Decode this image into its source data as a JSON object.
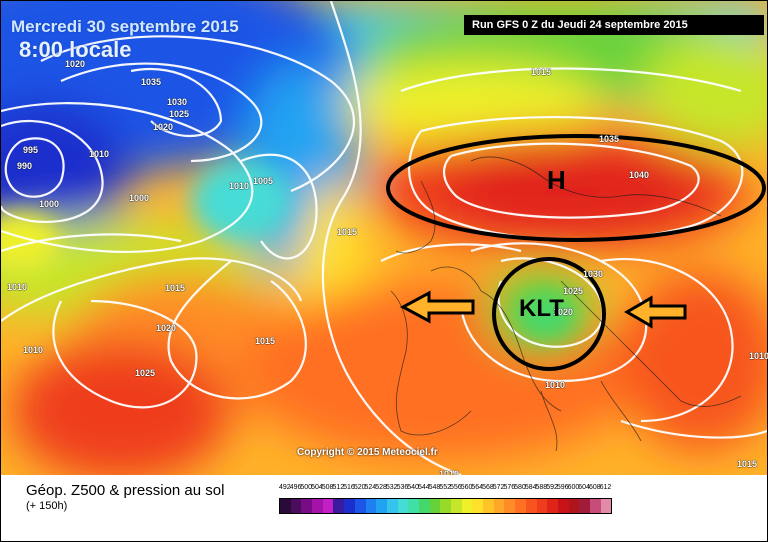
{
  "header": {
    "date": "Mercredi 30 septembre 2015",
    "time": "8:00 locale",
    "run": "Run GFS 0 Z du Jeudi 24 septembre 2015"
  },
  "copyright": "Copyright © 2015 Meteociel.fr",
  "annotations": {
    "high": "H",
    "low": "KLT"
  },
  "isobar_labels": [
    "1020",
    "1035",
    "1030",
    "1025",
    "1020",
    "995",
    "990",
    "1000",
    "1010",
    "1005",
    "1010",
    "1000",
    "1015",
    "1010",
    "1015",
    "1020",
    "1025",
    "1010",
    "1015",
    "1010",
    "1015",
    "1035",
    "1040",
    "1030",
    "1025",
    "1020",
    "1010",
    "1015",
    "1010"
  ],
  "legend": {
    "title": "Géop. Z500 & pression au sol",
    "subtitle": "(+ 150h)",
    "ticks": [
      "492",
      "496",
      "500",
      "504",
      "508",
      "512",
      "516",
      "520",
      "524",
      "528",
      "532",
      "536",
      "540",
      "544",
      "548",
      "552",
      "556",
      "560",
      "564",
      "568",
      "572",
      "576",
      "580",
      "584",
      "588",
      "592",
      "596",
      "600",
      "604",
      "608",
      "612"
    ],
    "colors": [
      "#2a0a3a",
      "#4b0c5c",
      "#7a0b86",
      "#a412a8",
      "#c21fc4",
      "#3a1a9e",
      "#1c2fcc",
      "#1d55e6",
      "#1d7ff0",
      "#22a3f2",
      "#35c4ee",
      "#46dcd6",
      "#3fe0a6",
      "#44d86a",
      "#66d23a",
      "#97da29",
      "#c6e62a",
      "#eef02a",
      "#ffe02a",
      "#ffc428",
      "#ffa828",
      "#ff8c26",
      "#ff7022",
      "#f7541e",
      "#ef3c1c",
      "#e0241a",
      "#c81418",
      "#b0141c",
      "#a01c38",
      "#c84c7a",
      "#e28aa8"
    ]
  },
  "colors": {
    "accent_high": "#e62a1a",
    "accent_low": "#49c92c",
    "cold": "#1d55e6"
  }
}
